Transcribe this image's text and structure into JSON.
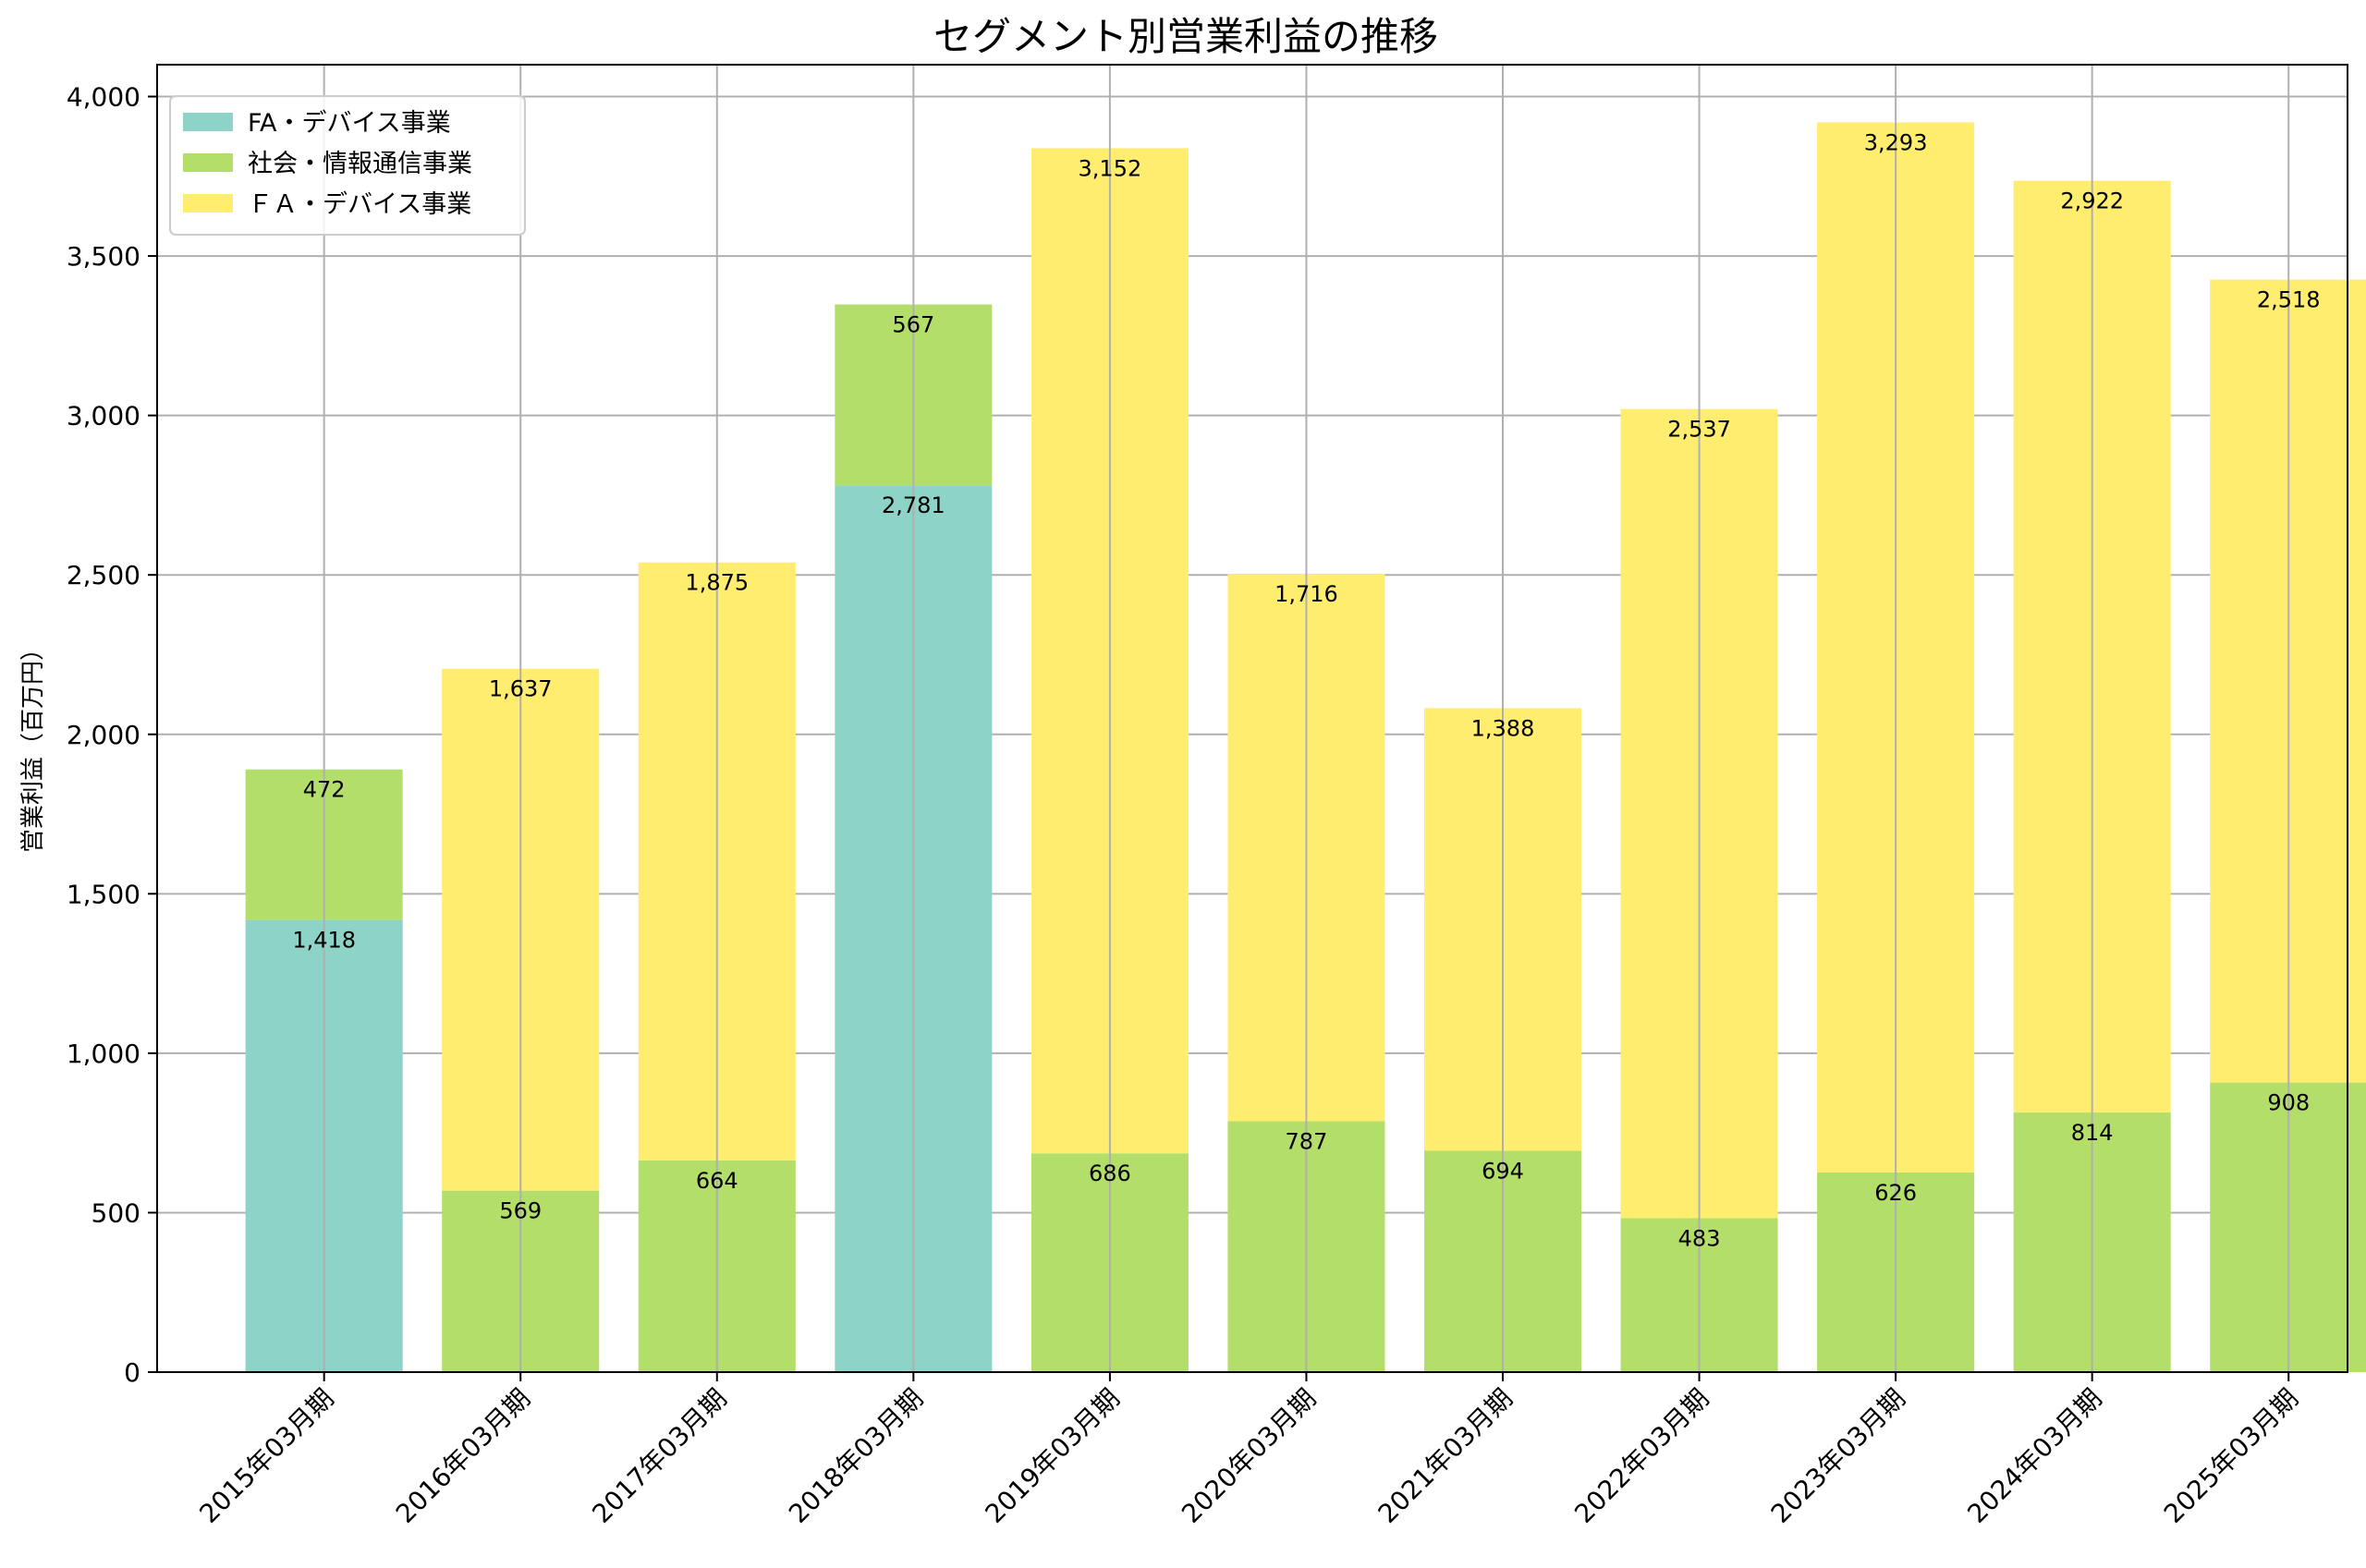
{
  "chart_data": {
    "type": "bar",
    "stacked": true,
    "title": "セグメント別営業利益の推移",
    "xlabel": "",
    "ylabel": "営業利益（百万円）",
    "ylim": [
      0,
      4100
    ],
    "yticks": [
      0,
      500,
      1000,
      1500,
      2000,
      2500,
      3000,
      3500,
      4000
    ],
    "ytick_labels": [
      "0",
      "500",
      "1,000",
      "1,500",
      "2,000",
      "2,500",
      "3,000",
      "3,500",
      "4,000"
    ],
    "grid": true,
    "legend_position": "top-left",
    "categories": [
      "2015年03月期",
      "2016年03月期",
      "2017年03月期",
      "2018年03月期",
      "2019年03月期",
      "2020年03月期",
      "2021年03月期",
      "2022年03月期",
      "2023年03月期",
      "2024年03月期",
      "2025年03月期"
    ],
    "series": [
      {
        "name": "FA・デバイス事業",
        "color": "#8dd3c7",
        "values": [
          1418,
          0,
          0,
          2781,
          0,
          0,
          0,
          0,
          0,
          0,
          0
        ],
        "labels": [
          "1,418",
          "",
          "",
          "2,781",
          "",
          "",
          "",
          "",
          "",
          "",
          ""
        ]
      },
      {
        "name": "社会・情報通信事業",
        "color": "#b3de69",
        "values": [
          472,
          569,
          664,
          567,
          686,
          787,
          694,
          483,
          626,
          814,
          908
        ],
        "labels": [
          "472",
          "569",
          "664",
          "567",
          "686",
          "787",
          "694",
          "483",
          "626",
          "814",
          "908"
        ]
      },
      {
        "name": "ＦＡ・デバイス事業",
        "color": "#ffed6f",
        "values": [
          0,
          1637,
          1875,
          0,
          3152,
          1716,
          1388,
          2537,
          3293,
          2922,
          2518
        ],
        "labels": [
          "",
          "1,637",
          "1,875",
          "",
          "3,152",
          "1,716",
          "1,388",
          "2,537",
          "3,293",
          "2,922",
          "2,518"
        ]
      }
    ]
  }
}
